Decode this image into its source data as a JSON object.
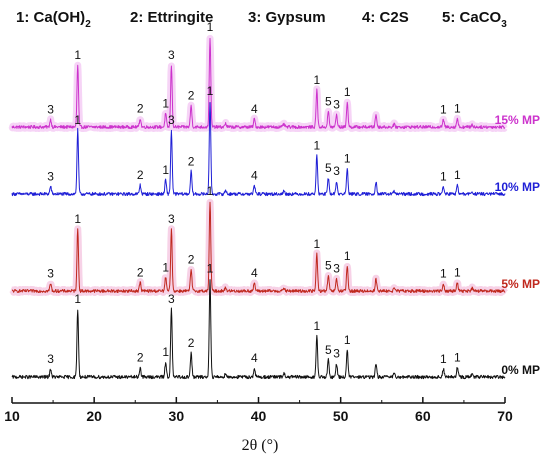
{
  "legend": [
    {
      "num": "1",
      "name": "Ca(OH)",
      "sub": "2"
    },
    {
      "num": "2",
      "name": "Ettringite",
      "sub": ""
    },
    {
      "num": "3",
      "name": "Gypsum",
      "sub": ""
    },
    {
      "num": "4",
      "name": "C2S",
      "sub": ""
    },
    {
      "num": "5",
      "name": "CaCO",
      "sub": "3"
    }
  ],
  "chart_data": {
    "type": "line",
    "xlabel": "2θ (°)",
    "xlim": [
      10,
      70
    ],
    "xticks": [
      10,
      20,
      30,
      40,
      50,
      60,
      70
    ],
    "y_ticks_shown": false,
    "background_noise": 0.025,
    "peaks": [
      {
        "x": 14.7,
        "h": 0.12,
        "label": "3"
      },
      {
        "x": 18.0,
        "h": 1.0,
        "label": "1"
      },
      {
        "x": 25.6,
        "h": 0.14,
        "label": "2"
      },
      {
        "x": 28.7,
        "h": 0.22,
        "label": "1"
      },
      {
        "x": 29.4,
        "h": 1.0,
        "label": "3"
      },
      {
        "x": 31.8,
        "h": 0.35,
        "label": "2"
      },
      {
        "x": 34.1,
        "h": 1.45,
        "label": "1"
      },
      {
        "x": 36.0,
        "h": 0.06,
        "label": ""
      },
      {
        "x": 39.5,
        "h": 0.13,
        "label": "4"
      },
      {
        "x": 43.1,
        "h": 0.05,
        "label": ""
      },
      {
        "x": 47.1,
        "h": 0.6,
        "label": "1"
      },
      {
        "x": 48.5,
        "h": 0.25,
        "label": "5"
      },
      {
        "x": 49.5,
        "h": 0.2,
        "label": "3"
      },
      {
        "x": 50.8,
        "h": 0.4,
        "label": "1"
      },
      {
        "x": 54.3,
        "h": 0.2,
        "label": ""
      },
      {
        "x": 56.5,
        "h": 0.04,
        "label": ""
      },
      {
        "x": 62.5,
        "h": 0.12,
        "label": "1"
      },
      {
        "x": 64.2,
        "h": 0.14,
        "label": "1"
      },
      {
        "x": 66.0,
        "h": 0.04,
        "label": ""
      }
    ],
    "series": [
      {
        "name": "15% MP",
        "color": "#cc33cc",
        "halo": "#f3c6f3",
        "offset": 3
      },
      {
        "name": "10% MP",
        "color": "#1f1fd6",
        "halo": "",
        "offset": 2
      },
      {
        "name": "5% MP",
        "color": "#c0281e",
        "halo": "#f4c3df",
        "offset": 1
      },
      {
        "name": "0% MP",
        "color": "#111111",
        "halo": "",
        "offset": 0
      }
    ]
  }
}
